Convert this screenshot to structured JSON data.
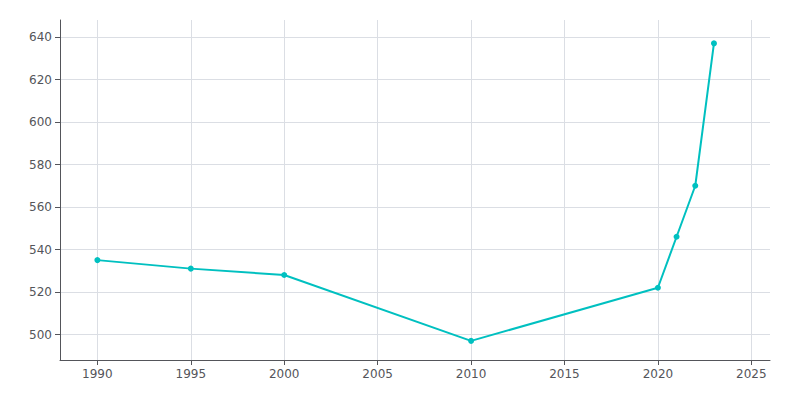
{
  "chart_data": {
    "type": "line",
    "x": [
      1990,
      1995,
      2000,
      2010,
      2020,
      2021,
      2022,
      2023
    ],
    "values": [
      535,
      531,
      528,
      497,
      522,
      546,
      570,
      637
    ],
    "color": "#00c0c0",
    "marker": "circle",
    "xlim": [
      1988,
      2026
    ],
    "ylim": [
      488,
      648
    ],
    "xticks": [
      1990,
      1995,
      2000,
      2005,
      2010,
      2015,
      2020,
      2025
    ],
    "yticks": [
      500,
      520,
      540,
      560,
      580,
      600,
      620,
      640
    ],
    "grid": true
  }
}
